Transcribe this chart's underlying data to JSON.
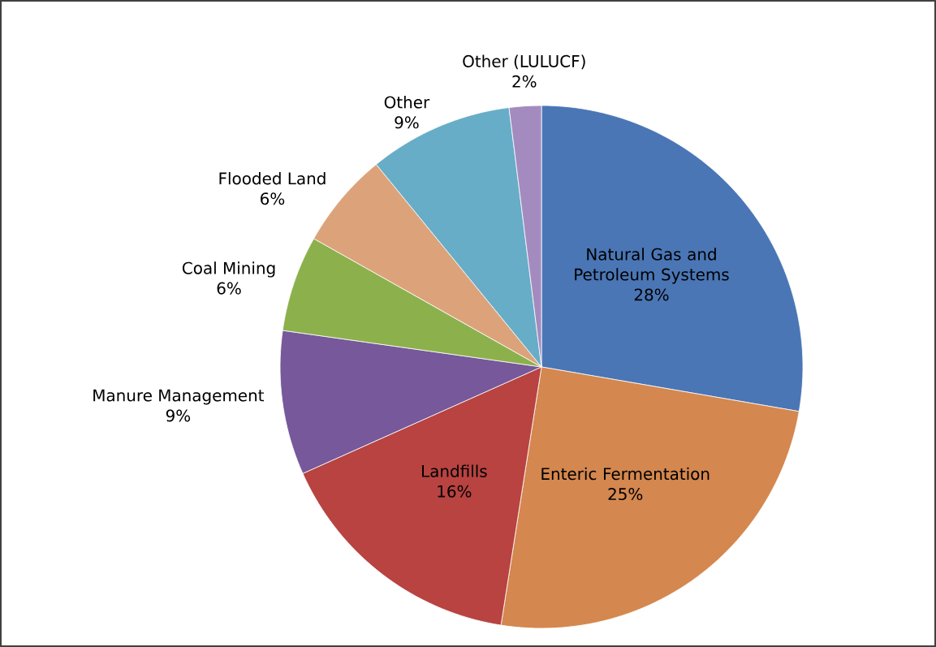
{
  "chart_data": {
    "type": "pie",
    "categories": [
      "Natural Gas and Petroleum Systems",
      "Enteric Fermentation",
      "Landfills",
      "Manure Management",
      "Coal Mining",
      "Flooded Land",
      "Other",
      "Other (LULUCF)"
    ],
    "values": [
      28,
      25,
      16,
      9,
      6,
      6,
      9,
      2
    ],
    "value_labels": [
      "28%",
      "25%",
      "16%",
      "9%",
      "6%",
      "6%",
      "9%",
      "2%"
    ],
    "colors": [
      "#4a76b6",
      "#d4874e",
      "#b84340",
      "#77589a",
      "#8cb14c",
      "#dca37b",
      "#67adc7",
      "#a48bbf"
    ]
  }
}
